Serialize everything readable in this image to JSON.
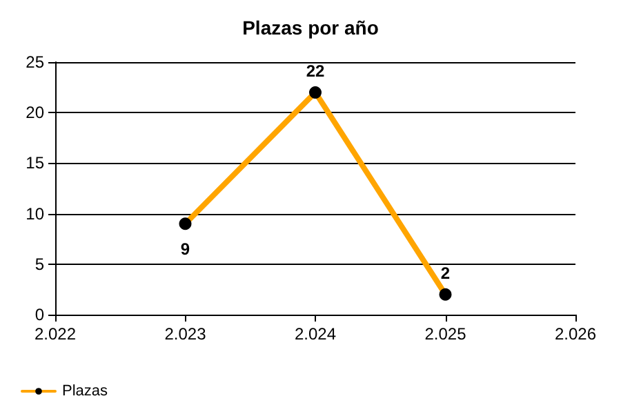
{
  "chart_data": {
    "type": "line",
    "title": "Plazas por año",
    "x": [
      2023,
      2024,
      2025
    ],
    "series": [
      {
        "name": "Plazas",
        "color": "#ffa500",
        "values": [
          9,
          22,
          2
        ]
      }
    ],
    "xlim": [
      2022,
      2026
    ],
    "xticks": [
      {
        "value": 2022,
        "label": "2.022"
      },
      {
        "value": 2023,
        "label": "2.023"
      },
      {
        "value": 2024,
        "label": "2.024"
      },
      {
        "value": 2025,
        "label": "2.025"
      },
      {
        "value": 2026,
        "label": "2.026"
      }
    ],
    "ylim": [
      0,
      25
    ],
    "yticks": [
      0,
      5,
      10,
      15,
      20,
      25
    ],
    "grid": "y",
    "legend": "bottom left",
    "marker": "circle",
    "line_style": "solid",
    "data_labels": true
  }
}
